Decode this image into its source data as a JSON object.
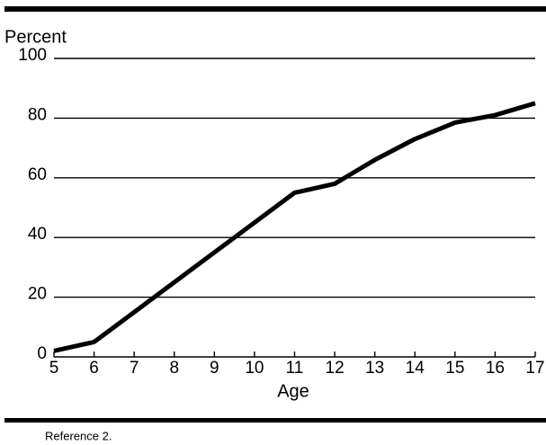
{
  "chart_data": {
    "type": "line",
    "y_label": "Percent",
    "x_label": "Age",
    "footnote": "Reference 2.",
    "x": [
      5,
      6,
      7,
      8,
      9,
      10,
      11,
      12,
      13,
      14,
      15,
      16,
      17
    ],
    "series": [
      {
        "name": null,
        "color": "#000000",
        "values": [
          2,
          5,
          15,
          25,
          35,
          45,
          55,
          58,
          66,
          73,
          78.5,
          81,
          85
        ]
      }
    ],
    "xlim": [
      5,
      17
    ],
    "xticks": [
      5,
      6,
      7,
      8,
      9,
      10,
      11,
      12,
      13,
      14,
      15,
      16,
      17
    ],
    "ylim": [
      0,
      100
    ],
    "yticks": [
      0,
      20,
      40,
      60,
      80,
      100
    ],
    "grid": true
  }
}
